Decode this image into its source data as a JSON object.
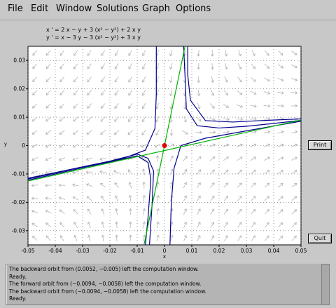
{
  "menu": [
    "File",
    "Edit",
    "Window",
    "Solutions",
    "Graph",
    "Options"
  ],
  "equations": {
    "line1": "x ' = 2 x  −  y + 3 (x² − y²) + 2 x y",
    "line2": "y ' = x  −  3 y  −  3 (x² − y²) + 3 x y"
  },
  "buttons": {
    "print": "Print",
    "quit": "Quit"
  },
  "status_lines": [
    "The backward orbit from (0.0052, −0.005) left the computation window.",
    "Ready.",
    "The forward orbit from (−0.0094, −0.0058) left the computation window.",
    "The backward orbit from (−0.0094, −0.0058) left the computation window.",
    "Ready."
  ],
  "chart_data": {
    "type": "line",
    "xlabel": "x",
    "ylabel": "y",
    "xlim": [
      -0.05,
      0.05
    ],
    "ylim": [
      -0.035,
      0.035
    ],
    "xticks": [
      "-0.05",
      "-0.04",
      "-0.03",
      "-0.02",
      "-0.01",
      "0",
      "0.01",
      "0.02",
      "0.03",
      "0.04",
      "0.05"
    ],
    "yticks": [
      "0.03",
      "0.02",
      "0.01",
      "0",
      "-0.01",
      "-0.02",
      "-0.03"
    ],
    "grid": "dotted",
    "equilibrium": {
      "x": 0,
      "y": 0,
      "color": "#e00000"
    },
    "colors": {
      "orbit": "#00008c",
      "separatrix": "#00b400",
      "field": "#b4b4b4",
      "background": "#ffffff"
    },
    "separatrices": [
      {
        "name": "",
        "points": [
          [
            -0.05,
            -0.0125
          ],
          [
            0.05,
            0.009
          ]
        ]
      },
      {
        "name": "",
        "points": [
          [
            -0.0075,
            -0.035
          ],
          [
            0.0075,
            0.035
          ]
        ]
      }
    ],
    "orbits": [
      {
        "points": [
          [
            -0.05,
            -0.0115
          ],
          [
            -0.04,
            -0.0095
          ],
          [
            -0.03,
            -0.0075
          ],
          [
            -0.02,
            -0.0055
          ],
          [
            -0.01,
            -0.003
          ],
          [
            -0.006,
            -0.0045
          ],
          [
            -0.004,
            -0.009
          ],
          [
            -0.0045,
            -0.02
          ],
          [
            -0.0055,
            -0.035
          ]
        ]
      },
      {
        "points": [
          [
            -0.05,
            -0.0122
          ],
          [
            -0.04,
            -0.01
          ],
          [
            -0.03,
            -0.0078
          ],
          [
            -0.02,
            -0.0058
          ],
          [
            -0.01,
            -0.0036
          ],
          [
            -0.006,
            -0.006
          ],
          [
            -0.005,
            -0.012
          ],
          [
            -0.006,
            -0.025
          ],
          [
            -0.007,
            -0.035
          ]
        ]
      },
      {
        "points": [
          [
            0.007,
            0.035
          ],
          [
            0.0075,
            0.025
          ],
          [
            0.008,
            0.013
          ],
          [
            0.012,
            0.007
          ],
          [
            0.02,
            0.0062
          ],
          [
            0.03,
            0.0068
          ],
          [
            0.04,
            0.0078
          ],
          [
            0.05,
            0.0089
          ]
        ]
      },
      {
        "points": [
          [
            0.0085,
            0.035
          ],
          [
            0.0085,
            0.025
          ],
          [
            0.0095,
            0.016
          ],
          [
            0.015,
            0.0088
          ],
          [
            0.025,
            0.0083
          ],
          [
            0.035,
            0.0088
          ],
          [
            0.045,
            0.0092
          ],
          [
            0.05,
            0.0094
          ]
        ]
      },
      {
        "points": [
          [
            -0.05,
            -0.0118
          ],
          [
            -0.03,
            -0.0075
          ],
          [
            -0.015,
            -0.0045
          ],
          [
            -0.007,
            -0.0016
          ],
          [
            -0.0035,
            0.006
          ],
          [
            -0.003,
            0.018
          ],
          [
            -0.003,
            0.035
          ]
        ]
      },
      {
        "points": [
          [
            0.05,
            0.0086
          ],
          [
            0.03,
            0.0052
          ],
          [
            0.015,
            0.0026
          ],
          [
            0.006,
            0.0
          ],
          [
            0.0035,
            -0.008
          ],
          [
            0.0025,
            -0.02
          ],
          [
            0.002,
            -0.035
          ]
        ]
      }
    ]
  }
}
